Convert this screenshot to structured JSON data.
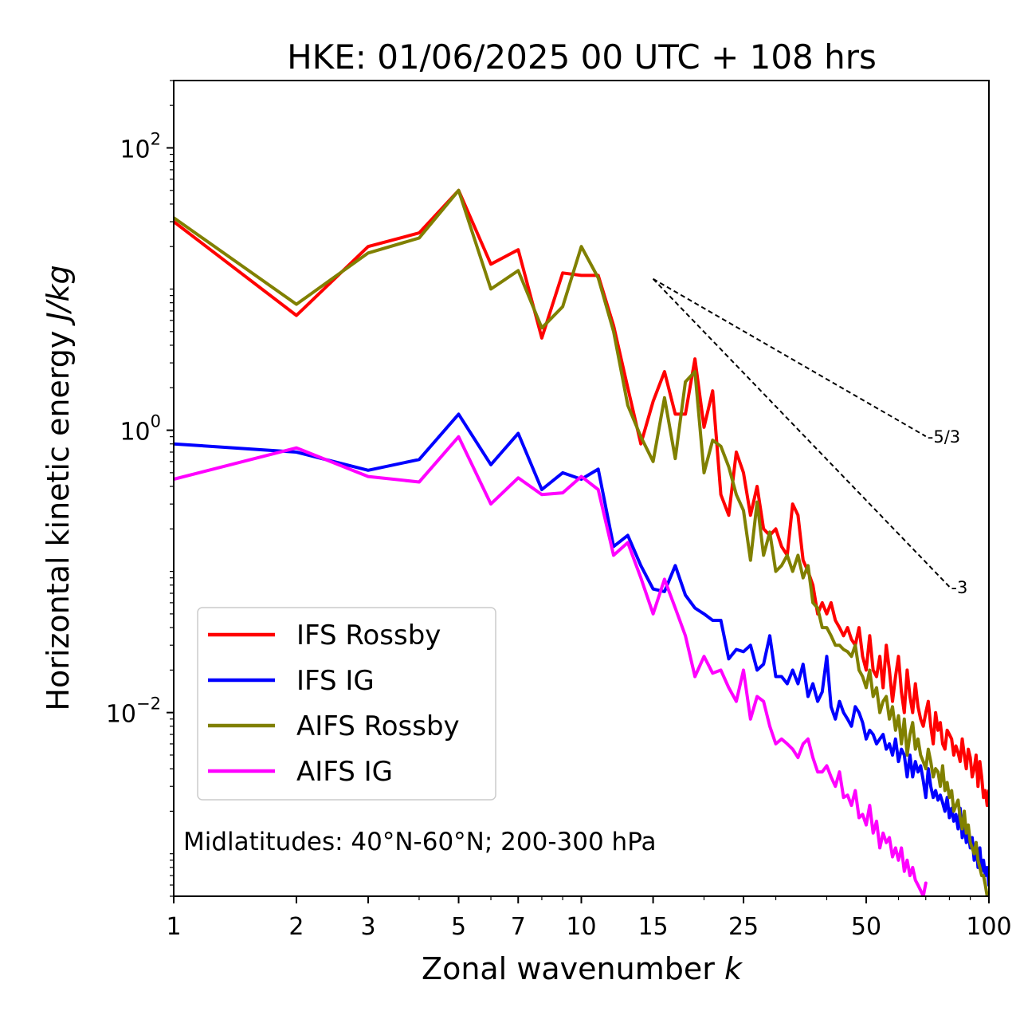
{
  "chart_data": {
    "type": "line",
    "title": "HKE: 01/06/2025 00 UTC + 108 hrs",
    "xlabel": "Zonal wavenumber k",
    "xlabel_main": "Zonal wavenumber ",
    "xlabel_var": "k",
    "ylabel_main": "Horizontal kinetic energy ",
    "ylabel_unit": "J/kg",
    "xscale": "log",
    "yscale": "log",
    "xlim": [
      1,
      100
    ],
    "ylim": [
      0.0005,
      300
    ],
    "x_ticks": [
      1,
      2,
      3,
      5,
      7,
      10,
      15,
      25,
      50,
      100
    ],
    "x_tick_labels": [
      "1",
      "2",
      "3",
      "5",
      "7",
      "10",
      "15",
      "25",
      "50",
      "100"
    ],
    "y_ticks": [
      0.01,
      1,
      100
    ],
    "y_tick_labels": [
      {
        "base": "10",
        "exp": "−2"
      },
      {
        "base": "10",
        "exp": "0"
      },
      {
        "base": "10",
        "exp": "2"
      }
    ],
    "annotation": "Midlatitudes: 40°N-60°N; 200-300 hPa",
    "legend_position": "lower-left",
    "grid": false,
    "reference_lines": [
      {
        "label": "-5/3",
        "slope": -1.6667,
        "x": [
          15,
          70
        ],
        "y_start": 11.8
      },
      {
        "label": "-3",
        "slope": -3,
        "x": [
          15,
          80
        ],
        "y_start": 11.8
      }
    ],
    "series": [
      {
        "name": "IFS Rossby",
        "color": "#ff0000",
        "x": [
          1,
          2,
          3,
          4,
          5,
          6,
          7,
          8,
          9,
          10,
          11,
          12,
          13,
          14,
          15,
          16,
          17,
          18,
          19,
          20,
          21,
          22,
          23,
          24,
          25,
          26,
          27,
          28,
          29,
          30,
          31,
          32,
          33,
          34,
          35,
          36,
          37,
          38,
          39,
          40,
          41,
          42,
          43,
          44,
          45,
          46,
          47,
          48,
          49,
          50,
          51,
          52,
          53,
          54,
          55,
          56,
          57,
          58,
          59,
          60,
          61,
          62,
          63,
          64,
          65,
          66,
          67,
          68,
          69,
          70,
          71,
          72,
          73,
          74,
          75,
          76,
          77,
          78,
          79,
          80,
          81,
          82,
          83,
          84,
          85,
          86,
          87,
          88,
          89,
          90,
          91,
          92,
          93,
          94,
          95,
          96,
          97,
          98,
          99,
          100
        ],
        "y": [
          30,
          6.5,
          20,
          25,
          50,
          15,
          19,
          4.5,
          13,
          12.5,
          12.5,
          5.5,
          2,
          0.8,
          1.6,
          2.6,
          1.3,
          1.3,
          3.2,
          1.05,
          1.9,
          0.35,
          0.25,
          0.7,
          0.5,
          0.25,
          0.4,
          0.2,
          0.18,
          0.2,
          0.15,
          0.13,
          0.3,
          0.25,
          0.12,
          0.1,
          0.08,
          0.05,
          0.06,
          0.05,
          0.06,
          0.045,
          0.04,
          0.035,
          0.04,
          0.033,
          0.03,
          0.04,
          0.025,
          0.02,
          0.035,
          0.02,
          0.018,
          0.025,
          0.015,
          0.03,
          0.02,
          0.012,
          0.018,
          0.025,
          0.014,
          0.01,
          0.02,
          0.013,
          0.01,
          0.016,
          0.011,
          0.009,
          0.008,
          0.01,
          0.012,
          0.008,
          0.006,
          0.01,
          0.0075,
          0.0085,
          0.006,
          0.0055,
          0.0075,
          0.007,
          0.0065,
          0.005,
          0.0058,
          0.0052,
          0.0045,
          0.0065,
          0.005,
          0.004,
          0.0055,
          0.0048,
          0.0035,
          0.004,
          0.005,
          0.003,
          0.0045,
          0.0035,
          0.0025,
          0.0028,
          0.0022,
          0.0028
        ]
      },
      {
        "name": "IFS IG",
        "color": "#0000ff",
        "x": [
          1,
          2,
          3,
          4,
          5,
          6,
          7,
          8,
          9,
          10,
          11,
          12,
          13,
          14,
          15,
          16,
          17,
          18,
          19,
          20,
          21,
          22,
          23,
          24,
          25,
          26,
          27,
          28,
          29,
          30,
          31,
          32,
          33,
          34,
          35,
          36,
          37,
          38,
          39,
          40,
          41,
          42,
          43,
          44,
          45,
          46,
          47,
          48,
          49,
          50,
          51,
          52,
          53,
          54,
          55,
          56,
          57,
          58,
          59,
          60,
          61,
          62,
          63,
          64,
          65,
          66,
          67,
          68,
          69,
          70,
          71,
          72,
          73,
          74,
          75,
          76,
          77,
          78,
          79,
          80,
          81,
          82,
          83,
          84,
          85,
          86,
          87,
          88,
          89,
          90,
          91,
          92,
          93,
          94,
          95,
          96,
          97,
          98,
          99,
          100
        ],
        "y": [
          0.8,
          0.7,
          0.52,
          0.62,
          1.3,
          0.57,
          0.95,
          0.38,
          0.5,
          0.45,
          0.53,
          0.15,
          0.18,
          0.11,
          0.075,
          0.072,
          0.11,
          0.068,
          0.055,
          0.05,
          0.045,
          0.045,
          0.024,
          0.028,
          0.027,
          0.03,
          0.02,
          0.022,
          0.035,
          0.018,
          0.018,
          0.016,
          0.02,
          0.016,
          0.022,
          0.013,
          0.016,
          0.012,
          0.014,
          0.025,
          0.011,
          0.009,
          0.012,
          0.01,
          0.009,
          0.008,
          0.011,
          0.01,
          0.0085,
          0.0065,
          0.0075,
          0.007,
          0.006,
          0.0065,
          0.007,
          0.0055,
          0.006,
          0.005,
          0.0065,
          0.0045,
          0.0055,
          0.005,
          0.0035,
          0.005,
          0.0035,
          0.0045,
          0.0038,
          0.0042,
          0.0033,
          0.0025,
          0.004,
          0.003,
          0.0025,
          0.0028,
          0.0024,
          0.0026,
          0.0023,
          0.002,
          0.0025,
          0.0018,
          0.0021,
          0.0017,
          0.0019,
          0.0015,
          0.0021,
          0.0013,
          0.0016,
          0.0012,
          0.0014,
          0.0011,
          0.0013,
          0.0009,
          0.0012,
          0.0008,
          0.0011,
          0.00075,
          0.0009,
          0.0007,
          0.0008,
          0.0006
        ]
      },
      {
        "name": "AIFS Rossby",
        "color": "#808000",
        "x": [
          1,
          2,
          3,
          4,
          5,
          6,
          7,
          8,
          9,
          10,
          11,
          12,
          13,
          14,
          15,
          16,
          17,
          18,
          19,
          20,
          21,
          22,
          23,
          24,
          25,
          26,
          27,
          28,
          29,
          30,
          31,
          32,
          33,
          34,
          35,
          36,
          37,
          38,
          39,
          40,
          41,
          42,
          43,
          44,
          45,
          46,
          47,
          48,
          49,
          50,
          51,
          52,
          53,
          54,
          55,
          56,
          57,
          58,
          59,
          60,
          61,
          62,
          63,
          64,
          65,
          66,
          67,
          68,
          69,
          70,
          71,
          72,
          73,
          74,
          75,
          76,
          77,
          78,
          79,
          80,
          81,
          82,
          83,
          84,
          85,
          86,
          87,
          88,
          89,
          90,
          91,
          92,
          93,
          94,
          95,
          96,
          97,
          98,
          99,
          100
        ],
        "y": [
          32,
          7.8,
          18,
          23,
          50,
          10,
          13.5,
          5.3,
          7.5,
          20,
          12,
          5,
          1.5,
          0.9,
          0.6,
          1.7,
          0.63,
          2.2,
          2.6,
          0.5,
          0.85,
          0.77,
          0.55,
          0.35,
          0.27,
          0.12,
          0.31,
          0.13,
          0.19,
          0.1,
          0.11,
          0.13,
          0.1,
          0.13,
          0.09,
          0.11,
          0.06,
          0.055,
          0.04,
          0.04,
          0.035,
          0.03,
          0.03,
          0.028,
          0.027,
          0.025,
          0.03,
          0.02,
          0.018,
          0.015,
          0.02,
          0.013,
          0.015,
          0.01,
          0.012,
          0.013,
          0.009,
          0.011,
          0.0075,
          0.0095,
          0.006,
          0.009,
          0.005,
          0.007,
          0.0085,
          0.0055,
          0.0065,
          0.005,
          0.0045,
          0.004,
          0.0055,
          0.0045,
          0.0035,
          0.004,
          0.0038,
          0.003,
          0.0042,
          0.0028,
          0.0032,
          0.0025,
          0.0028,
          0.002,
          0.0022,
          0.0024,
          0.0018,
          0.0015,
          0.002,
          0.0014,
          0.0016,
          0.0012,
          0.0011,
          0.001,
          0.0012,
          0.0009,
          0.0008,
          0.0007,
          0.0007,
          0.0006,
          0.0005,
          0.0005
        ]
      },
      {
        "name": "AIFS IG",
        "color": "#ff00ff",
        "x": [
          1,
          2,
          3,
          4,
          5,
          6,
          7,
          8,
          9,
          10,
          11,
          12,
          13,
          14,
          15,
          16,
          17,
          18,
          19,
          20,
          21,
          22,
          23,
          24,
          25,
          26,
          27,
          28,
          29,
          30,
          31,
          32,
          33,
          34,
          35,
          36,
          37,
          38,
          39,
          40,
          41,
          42,
          43,
          44,
          45,
          46,
          47,
          48,
          49,
          50,
          51,
          52,
          53,
          54,
          55,
          56,
          57,
          58,
          59,
          60,
          61,
          62,
          63,
          64,
          65,
          66,
          67,
          68,
          69,
          70,
          71,
          72,
          73,
          74,
          75,
          76,
          77,
          78,
          79,
          80,
          81,
          82,
          83,
          84,
          85,
          86,
          87,
          88,
          89,
          90,
          91,
          92,
          93,
          94,
          95,
          96,
          97,
          98,
          99,
          100
        ],
        "y": [
          0.45,
          0.75,
          0.47,
          0.43,
          0.9,
          0.3,
          0.46,
          0.35,
          0.36,
          0.47,
          0.38,
          0.13,
          0.16,
          0.09,
          0.05,
          0.088,
          0.055,
          0.035,
          0.018,
          0.025,
          0.019,
          0.02,
          0.015,
          0.012,
          0.02,
          0.009,
          0.013,
          0.012,
          0.008,
          0.006,
          0.0065,
          0.006,
          0.0055,
          0.0048,
          0.006,
          0.0065,
          0.0048,
          0.0038,
          0.0038,
          0.0042,
          0.0035,
          0.003,
          0.0038,
          0.0025,
          0.0026,
          0.0022,
          0.0028,
          0.0018,
          0.0019,
          0.0016,
          0.0022,
          0.0014,
          0.0017,
          0.0011,
          0.0014,
          0.0012,
          0.0013,
          0.00095,
          0.0011,
          0.0009,
          0.0011,
          0.00075,
          0.0009,
          0.0007,
          0.0008,
          0.00065,
          0.0006,
          0.00055,
          0.0005,
          0.00062,
          null,
          null,
          null,
          null,
          null,
          null,
          null,
          null,
          null,
          null,
          null,
          null,
          null,
          null,
          null,
          null,
          null,
          null,
          null,
          null,
          null,
          null,
          null,
          null,
          null,
          null,
          null,
          null,
          null,
          null
        ]
      }
    ]
  }
}
